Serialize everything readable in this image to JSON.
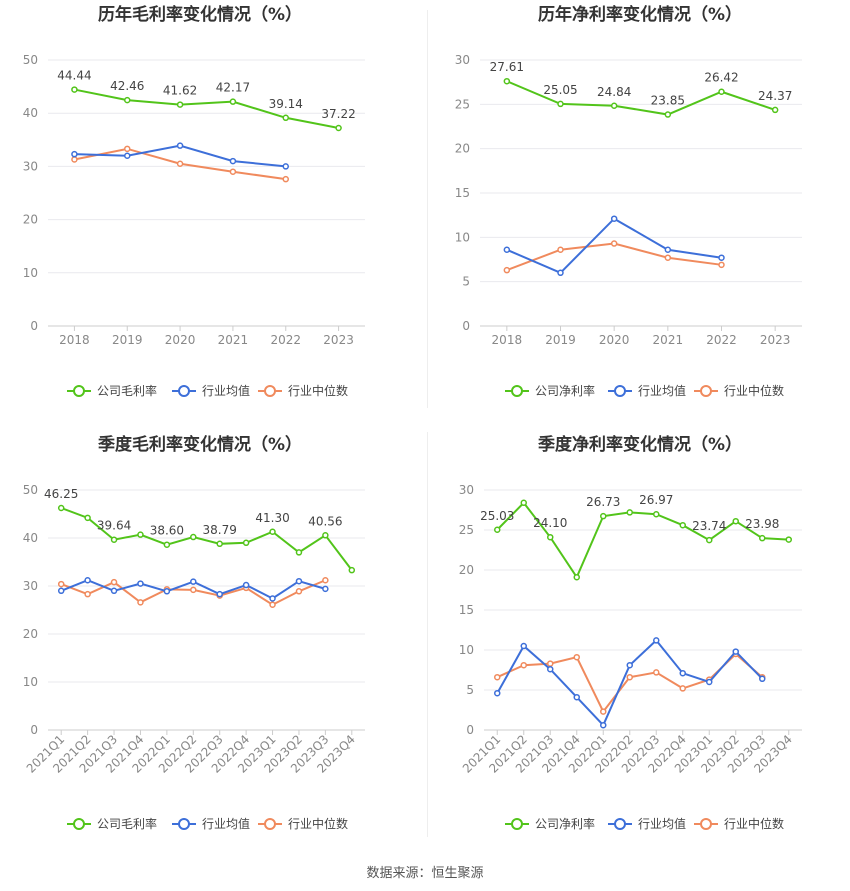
{
  "source": "数据来源：恒生聚源",
  "legend_colors": {
    "company": "#52c41a",
    "avg": "#3d6fd9",
    "median": "#f08a5d"
  },
  "chart_data": [
    {
      "type": "line",
      "title": "历年毛利率变化情况（%）",
      "x": [
        "2018",
        "2019",
        "2020",
        "2021",
        "2022",
        "2023"
      ],
      "ylim": [
        0,
        50
      ],
      "yticks": [
        0,
        10,
        20,
        30,
        40,
        50
      ],
      "grid": true,
      "legend_position": "bottom",
      "series": [
        {
          "name": "公司毛利率",
          "values": [
            44.44,
            42.46,
            41.62,
            42.17,
            39.14,
            37.22
          ],
          "labels": [
            "44.44",
            "42.46",
            "41.62",
            "42.17",
            "39.14",
            "37.22"
          ]
        },
        {
          "name": "行业均值",
          "values": [
            32.3,
            32.0,
            33.9,
            31.0,
            30.0,
            null
          ],
          "labels": []
        },
        {
          "name": "行业中位数",
          "values": [
            31.3,
            33.3,
            30.5,
            29.0,
            27.6,
            null
          ],
          "labels": []
        }
      ]
    },
    {
      "type": "line",
      "title": "历年净利率变化情况（%）",
      "x": [
        "2018",
        "2019",
        "2020",
        "2021",
        "2022",
        "2023"
      ],
      "ylim": [
        0,
        30
      ],
      "yticks": [
        0,
        5,
        10,
        15,
        20,
        25,
        30
      ],
      "grid": true,
      "legend_position": "bottom",
      "series": [
        {
          "name": "公司净利率",
          "values": [
            27.61,
            25.05,
            24.84,
            23.85,
            26.42,
            24.37
          ],
          "labels": [
            "27.61",
            "25.05",
            "24.84",
            "23.85",
            "26.42",
            "24.37"
          ]
        },
        {
          "name": "行业均值",
          "values": [
            8.6,
            6.0,
            12.1,
            8.6,
            7.7,
            null
          ],
          "labels": []
        },
        {
          "name": "行业中位数",
          "values": [
            6.3,
            8.6,
            9.3,
            7.7,
            6.9,
            null
          ],
          "labels": []
        }
      ]
    },
    {
      "type": "line",
      "title": "季度毛利率变化情况（%）",
      "x": [
        "2021Q1",
        "2021Q2",
        "2021Q3",
        "2021Q4",
        "2022Q1",
        "2022Q2",
        "2022Q3",
        "2022Q4",
        "2023Q1",
        "2023Q2",
        "2023Q3",
        "2023Q4"
      ],
      "ylim": [
        0,
        50
      ],
      "yticks": [
        0,
        10,
        20,
        30,
        40,
        50
      ],
      "grid": true,
      "legend_position": "bottom",
      "series": [
        {
          "name": "公司毛利率",
          "values": [
            46.25,
            44.2,
            39.64,
            40.7,
            38.6,
            40.2,
            38.79,
            39.0,
            41.3,
            37.0,
            40.56,
            33.3
          ],
          "labels": [
            "46.25",
            "",
            "39.64",
            "",
            "38.60",
            "",
            "38.79",
            "",
            "41.30",
            "",
            "40.56",
            ""
          ]
        },
        {
          "name": "行业均值",
          "values": [
            29.0,
            31.2,
            29.0,
            30.5,
            28.9,
            30.9,
            28.3,
            30.2,
            27.4,
            31.0,
            29.4,
            null
          ],
          "labels": []
        },
        {
          "name": "行业中位数",
          "values": [
            30.4,
            28.3,
            30.8,
            26.6,
            29.3,
            29.2,
            28.0,
            29.6,
            26.1,
            28.9,
            31.2,
            null
          ],
          "labels": []
        }
      ]
    },
    {
      "type": "line",
      "title": "季度净利率变化情况（%）",
      "x": [
        "2021Q1",
        "2021Q2",
        "2021Q3",
        "2021Q4",
        "2022Q1",
        "2022Q2",
        "2022Q3",
        "2022Q4",
        "2023Q1",
        "2023Q2",
        "2023Q3",
        "2023Q4"
      ],
      "ylim": [
        0,
        30
      ],
      "yticks": [
        0,
        5,
        10,
        15,
        20,
        25,
        30
      ],
      "grid": true,
      "legend_position": "bottom",
      "series": [
        {
          "name": "公司净利率",
          "values": [
            25.03,
            28.4,
            24.1,
            19.1,
            26.73,
            27.2,
            26.97,
            25.6,
            23.74,
            26.1,
            23.98,
            23.8
          ],
          "labels": [
            "25.03",
            "",
            "24.10",
            "",
            "26.73",
            "",
            "26.97",
            "",
            "23.74",
            "",
            "23.98",
            ""
          ]
        },
        {
          "name": "行业均值",
          "values": [
            4.6,
            10.5,
            7.6,
            4.1,
            0.6,
            8.1,
            11.2,
            7.1,
            6.0,
            9.8,
            6.4,
            null
          ],
          "labels": []
        },
        {
          "name": "行业中位数",
          "values": [
            6.6,
            8.1,
            8.3,
            9.1,
            2.3,
            6.6,
            7.2,
            5.2,
            6.3,
            9.5,
            6.6,
            null
          ],
          "labels": []
        }
      ]
    }
  ]
}
